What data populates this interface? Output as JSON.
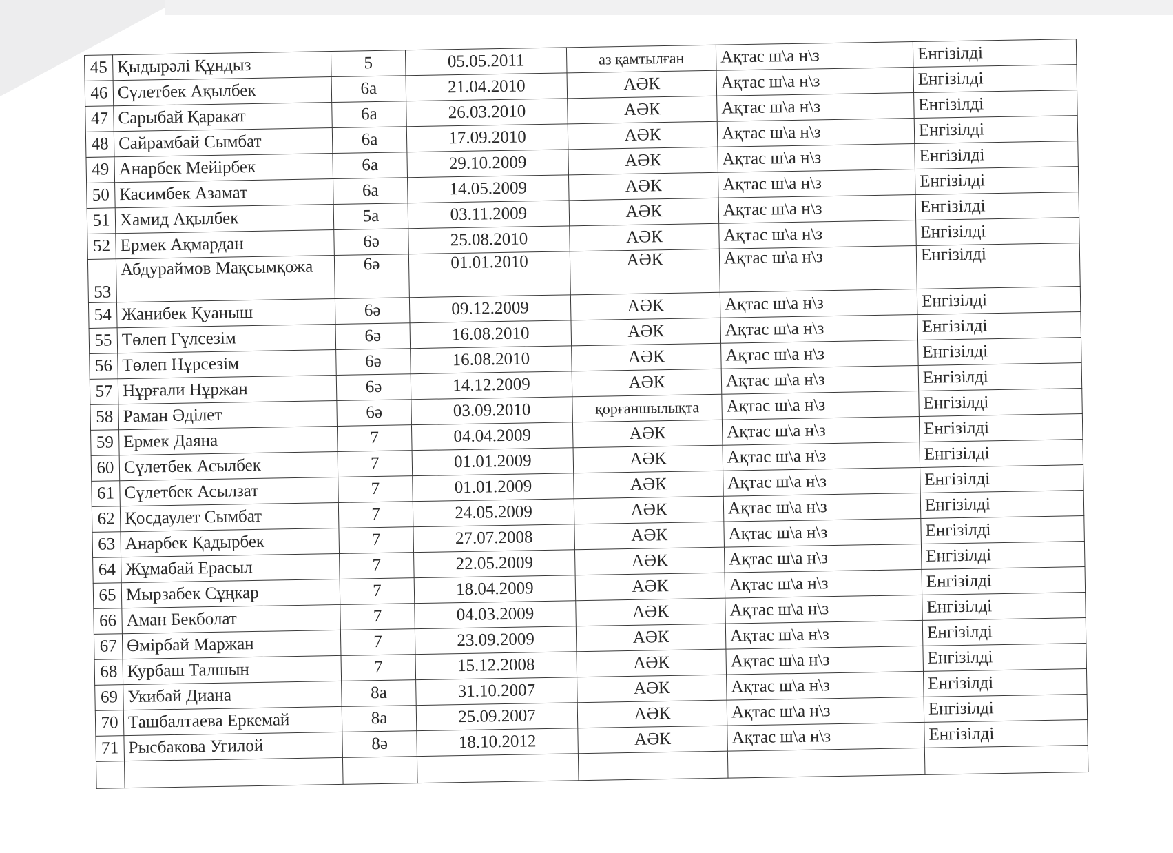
{
  "table": {
    "rows": [
      {
        "n": "45",
        "name": "Қыдырәлі Құндыз",
        "grade": "5",
        "dob": "05.05.2011",
        "status": "аз қамтылған",
        "school": "Ақтас ш\\а н\\з",
        "result": "Енгізілді"
      },
      {
        "n": "46",
        "name": "Сүлетбек Ақылбек",
        "grade": "6а",
        "dob": "21.04.2010",
        "status": "АӘК",
        "school": "Ақтас ш\\а н\\з",
        "result": "Енгізілді"
      },
      {
        "n": "47",
        "name": "Сарыбай Қаракат",
        "grade": "6а",
        "dob": "26.03.2010",
        "status": "АӘК",
        "school": "Ақтас ш\\а н\\з",
        "result": "Енгізілді"
      },
      {
        "n": "48",
        "name": "Сайрамбай Сымбат",
        "grade": "6а",
        "dob": "17.09.2010",
        "status": "АӘК",
        "school": "Ақтас ш\\а н\\з",
        "result": "Енгізілді"
      },
      {
        "n": "49",
        "name": "Анарбек Мейірбек",
        "grade": "6а",
        "dob": "29.10.2009",
        "status": "АӘК",
        "school": "Ақтас ш\\а н\\з",
        "result": "Енгізілді"
      },
      {
        "n": "50",
        "name": "Касимбек Азамат",
        "grade": "6а",
        "dob": "14.05.2009",
        "status": "АӘК",
        "school": "Ақтас ш\\а н\\з",
        "result": "Енгізілді"
      },
      {
        "n": "51",
        "name": "Хамид Ақылбек",
        "grade": "5а",
        "dob": "03.11.2009",
        "status": "АӘК",
        "school": "Ақтас ш\\а н\\з",
        "result": "Енгізілді"
      },
      {
        "n": "52",
        "name": "Ермек Ақмардан",
        "grade": "6ә",
        "dob": "25.08.2010",
        "status": "АӘК",
        "school": "Ақтас ш\\а н\\з",
        "result": "Енгізілді"
      },
      {
        "n": "53",
        "name": "Абдураймов Мақсымқожа",
        "grade": "6ә",
        "dob": "01.01.2010",
        "status": "АӘК",
        "school": "Ақтас ш\\а н\\з",
        "result": "Енгізілді"
      },
      {
        "n": "54",
        "name": "Жанибек Қуаныш",
        "grade": "6ә",
        "dob": "09.12.2009",
        "status": "АӘК",
        "school": "Ақтас ш\\а н\\з",
        "result": "Енгізілді"
      },
      {
        "n": "55",
        "name": "Төлеп Гүлсезім",
        "grade": "6ә",
        "dob": "16.08.2010",
        "status": "АӘК",
        "school": "Ақтас ш\\а н\\з",
        "result": "Енгізілді"
      },
      {
        "n": "56",
        "name": "Төлеп Нұрсезім",
        "grade": "6ә",
        "dob": "16.08.2010",
        "status": "АӘК",
        "school": "Ақтас ш\\а н\\з",
        "result": "Енгізілді"
      },
      {
        "n": "57",
        "name": "Нұрғали Нұржан",
        "grade": "6ә",
        "dob": "14.12.2009",
        "status": "АӘК",
        "school": "Ақтас ш\\а н\\з",
        "result": "Енгізілді"
      },
      {
        "n": "58",
        "name": "Раман Әділет",
        "grade": "6ә",
        "dob": "03.09.2010",
        "status": "қорғаншылықта",
        "school": "Ақтас ш\\а н\\з",
        "result": "Енгізілді"
      },
      {
        "n": "59",
        "name": "Ермек Даяна",
        "grade": "7",
        "dob": "04.04.2009",
        "status": "АӘК",
        "school": "Ақтас ш\\а н\\з",
        "result": "Енгізілді"
      },
      {
        "n": "60",
        "name": "Сүлетбек Асылбек",
        "grade": "7",
        "dob": "01.01.2009",
        "status": "АӘК",
        "school": "Ақтас ш\\а н\\з",
        "result": "Енгізілді"
      },
      {
        "n": "61",
        "name": "Сүлетбек Асылзат",
        "grade": "7",
        "dob": "01.01.2009",
        "status": "АӘК",
        "school": "Ақтас ш\\а н\\з",
        "result": "Енгізілді"
      },
      {
        "n": "62",
        "name": "Қосдаулет Сымбат",
        "grade": "7",
        "dob": "24.05.2009",
        "status": "АӘК",
        "school": "Ақтас ш\\а н\\з",
        "result": "Енгізілді"
      },
      {
        "n": "63",
        "name": "Анарбек Қадырбек",
        "grade": "7",
        "dob": "27.07.2008",
        "status": "АӘК",
        "school": "Ақтас ш\\а н\\з",
        "result": "Енгізілді"
      },
      {
        "n": "64",
        "name": "Жұмабай Ерасыл",
        "grade": "7",
        "dob": "22.05.2009",
        "status": "АӘК",
        "school": "Ақтас ш\\а н\\з",
        "result": "Енгізілді"
      },
      {
        "n": "65",
        "name": "Мырзабек Сұңкар",
        "grade": "7",
        "dob": "18.04.2009",
        "status": "АӘК",
        "school": "Ақтас ш\\а н\\з",
        "result": "Енгізілді"
      },
      {
        "n": "66",
        "name": "Аман Бекболат",
        "grade": "7",
        "dob": "04.03.2009",
        "status": "АӘК",
        "school": "Ақтас ш\\а н\\з",
        "result": "Енгізілді"
      },
      {
        "n": "67",
        "name": "Өмірбай Маржан",
        "grade": "7",
        "dob": "23.09.2009",
        "status": "АӘК",
        "school": "Ақтас ш\\а н\\з",
        "result": "Енгізілді"
      },
      {
        "n": "68",
        "name": "Курбаш Талшын",
        "grade": "7",
        "dob": "15.12.2008",
        "status": "АӘК",
        "school": "Ақтас ш\\а н\\з",
        "result": "Енгізілді"
      },
      {
        "n": "69",
        "name": "Укибай Диана",
        "grade": "8а",
        "dob": "31.10.2007",
        "status": "АӘК",
        "school": "Ақтас ш\\а н\\з",
        "result": "Енгізілді"
      },
      {
        "n": "70",
        "name": "Ташбалтаева Еркемай",
        "grade": "8а",
        "dob": "25.09.2007",
        "status": "АӘК",
        "school": "Ақтас ш\\а н\\з",
        "result": "Енгізілді"
      },
      {
        "n": "71",
        "name": "Рысбакова Угилой",
        "grade": "8ә",
        "dob": "18.10.2012",
        "status": "АӘК",
        "school": "Ақтас ш\\а н\\з",
        "result": "Енгізілді"
      }
    ]
  }
}
